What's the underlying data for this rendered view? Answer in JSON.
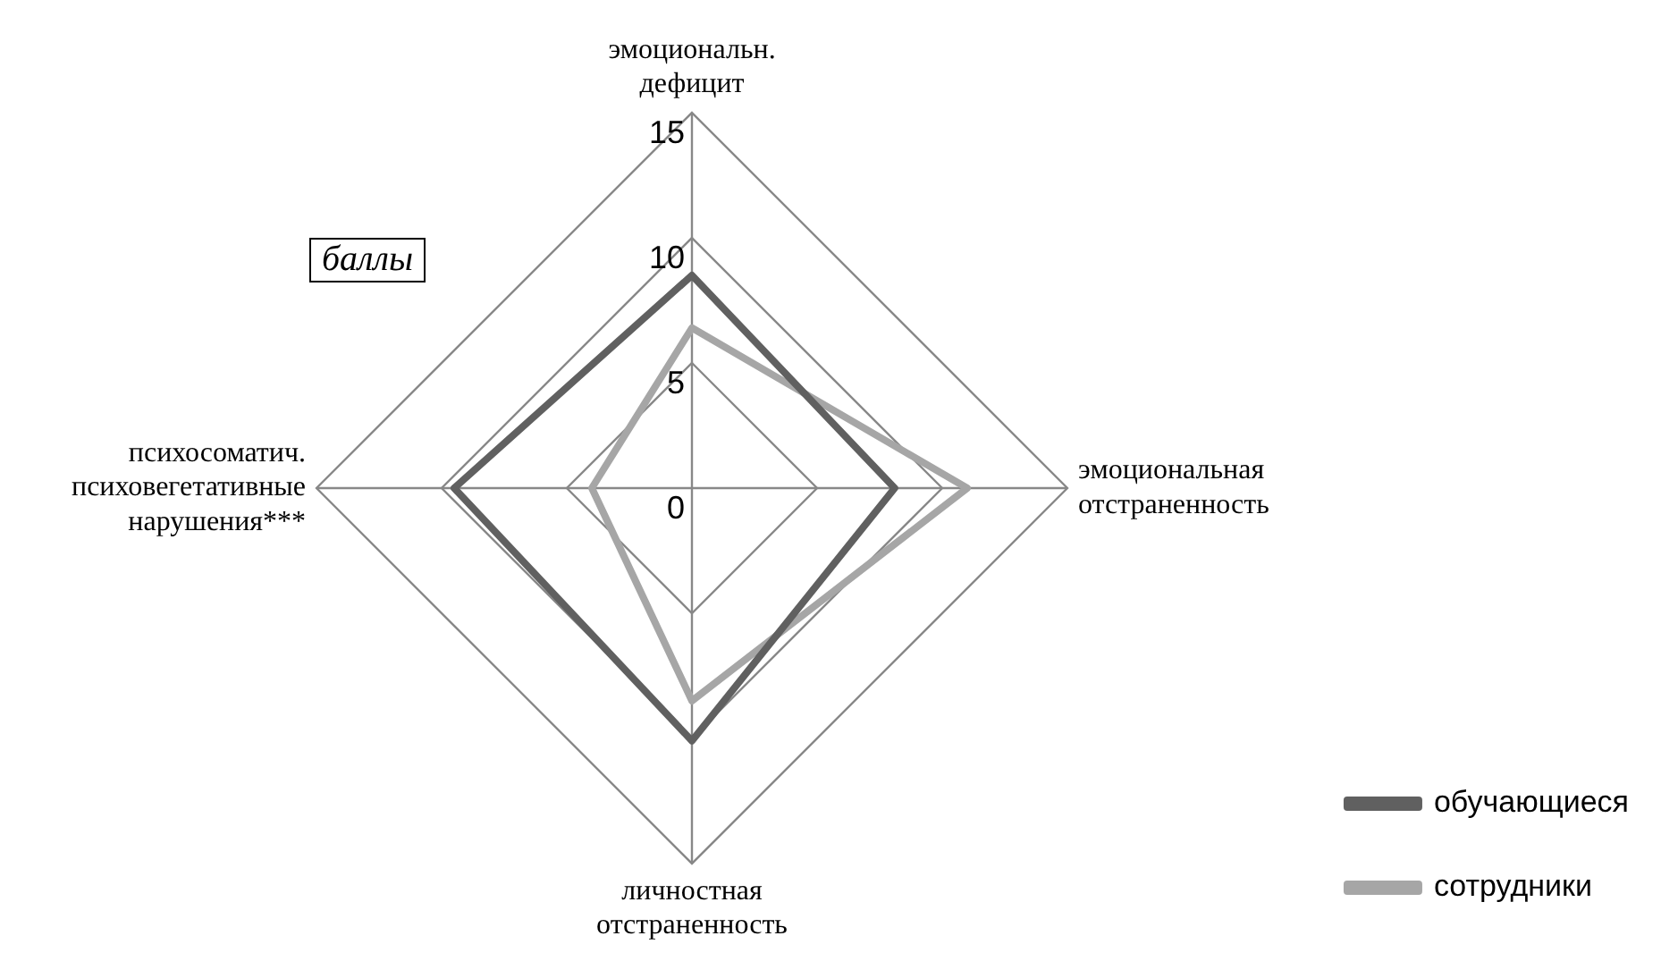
{
  "chart_data": {
    "type": "radar",
    "categories": [
      "эмоциональн. дефицит",
      "эмоциональная отстраненность",
      "личностная отстраненность",
      "психосоматич. психовегетативные нарушения***"
    ],
    "series": [
      {
        "name": "обучающиеся",
        "color": "#606060",
        "values": [
          8.5,
          8.1,
          10.1,
          9.5
        ]
      },
      {
        "name": "сотрудники",
        "color": "#a6a6a6",
        "values": [
          6.4,
          11.0,
          8.5,
          4.0
        ]
      }
    ],
    "ylim": [
      0,
      15
    ],
    "yticks": [
      0,
      5,
      10,
      15
    ],
    "grid": true,
    "legend": "bottom right",
    "marker": "none",
    "line_style": "solid",
    "annotations": [
      "баллы"
    ]
  }
}
